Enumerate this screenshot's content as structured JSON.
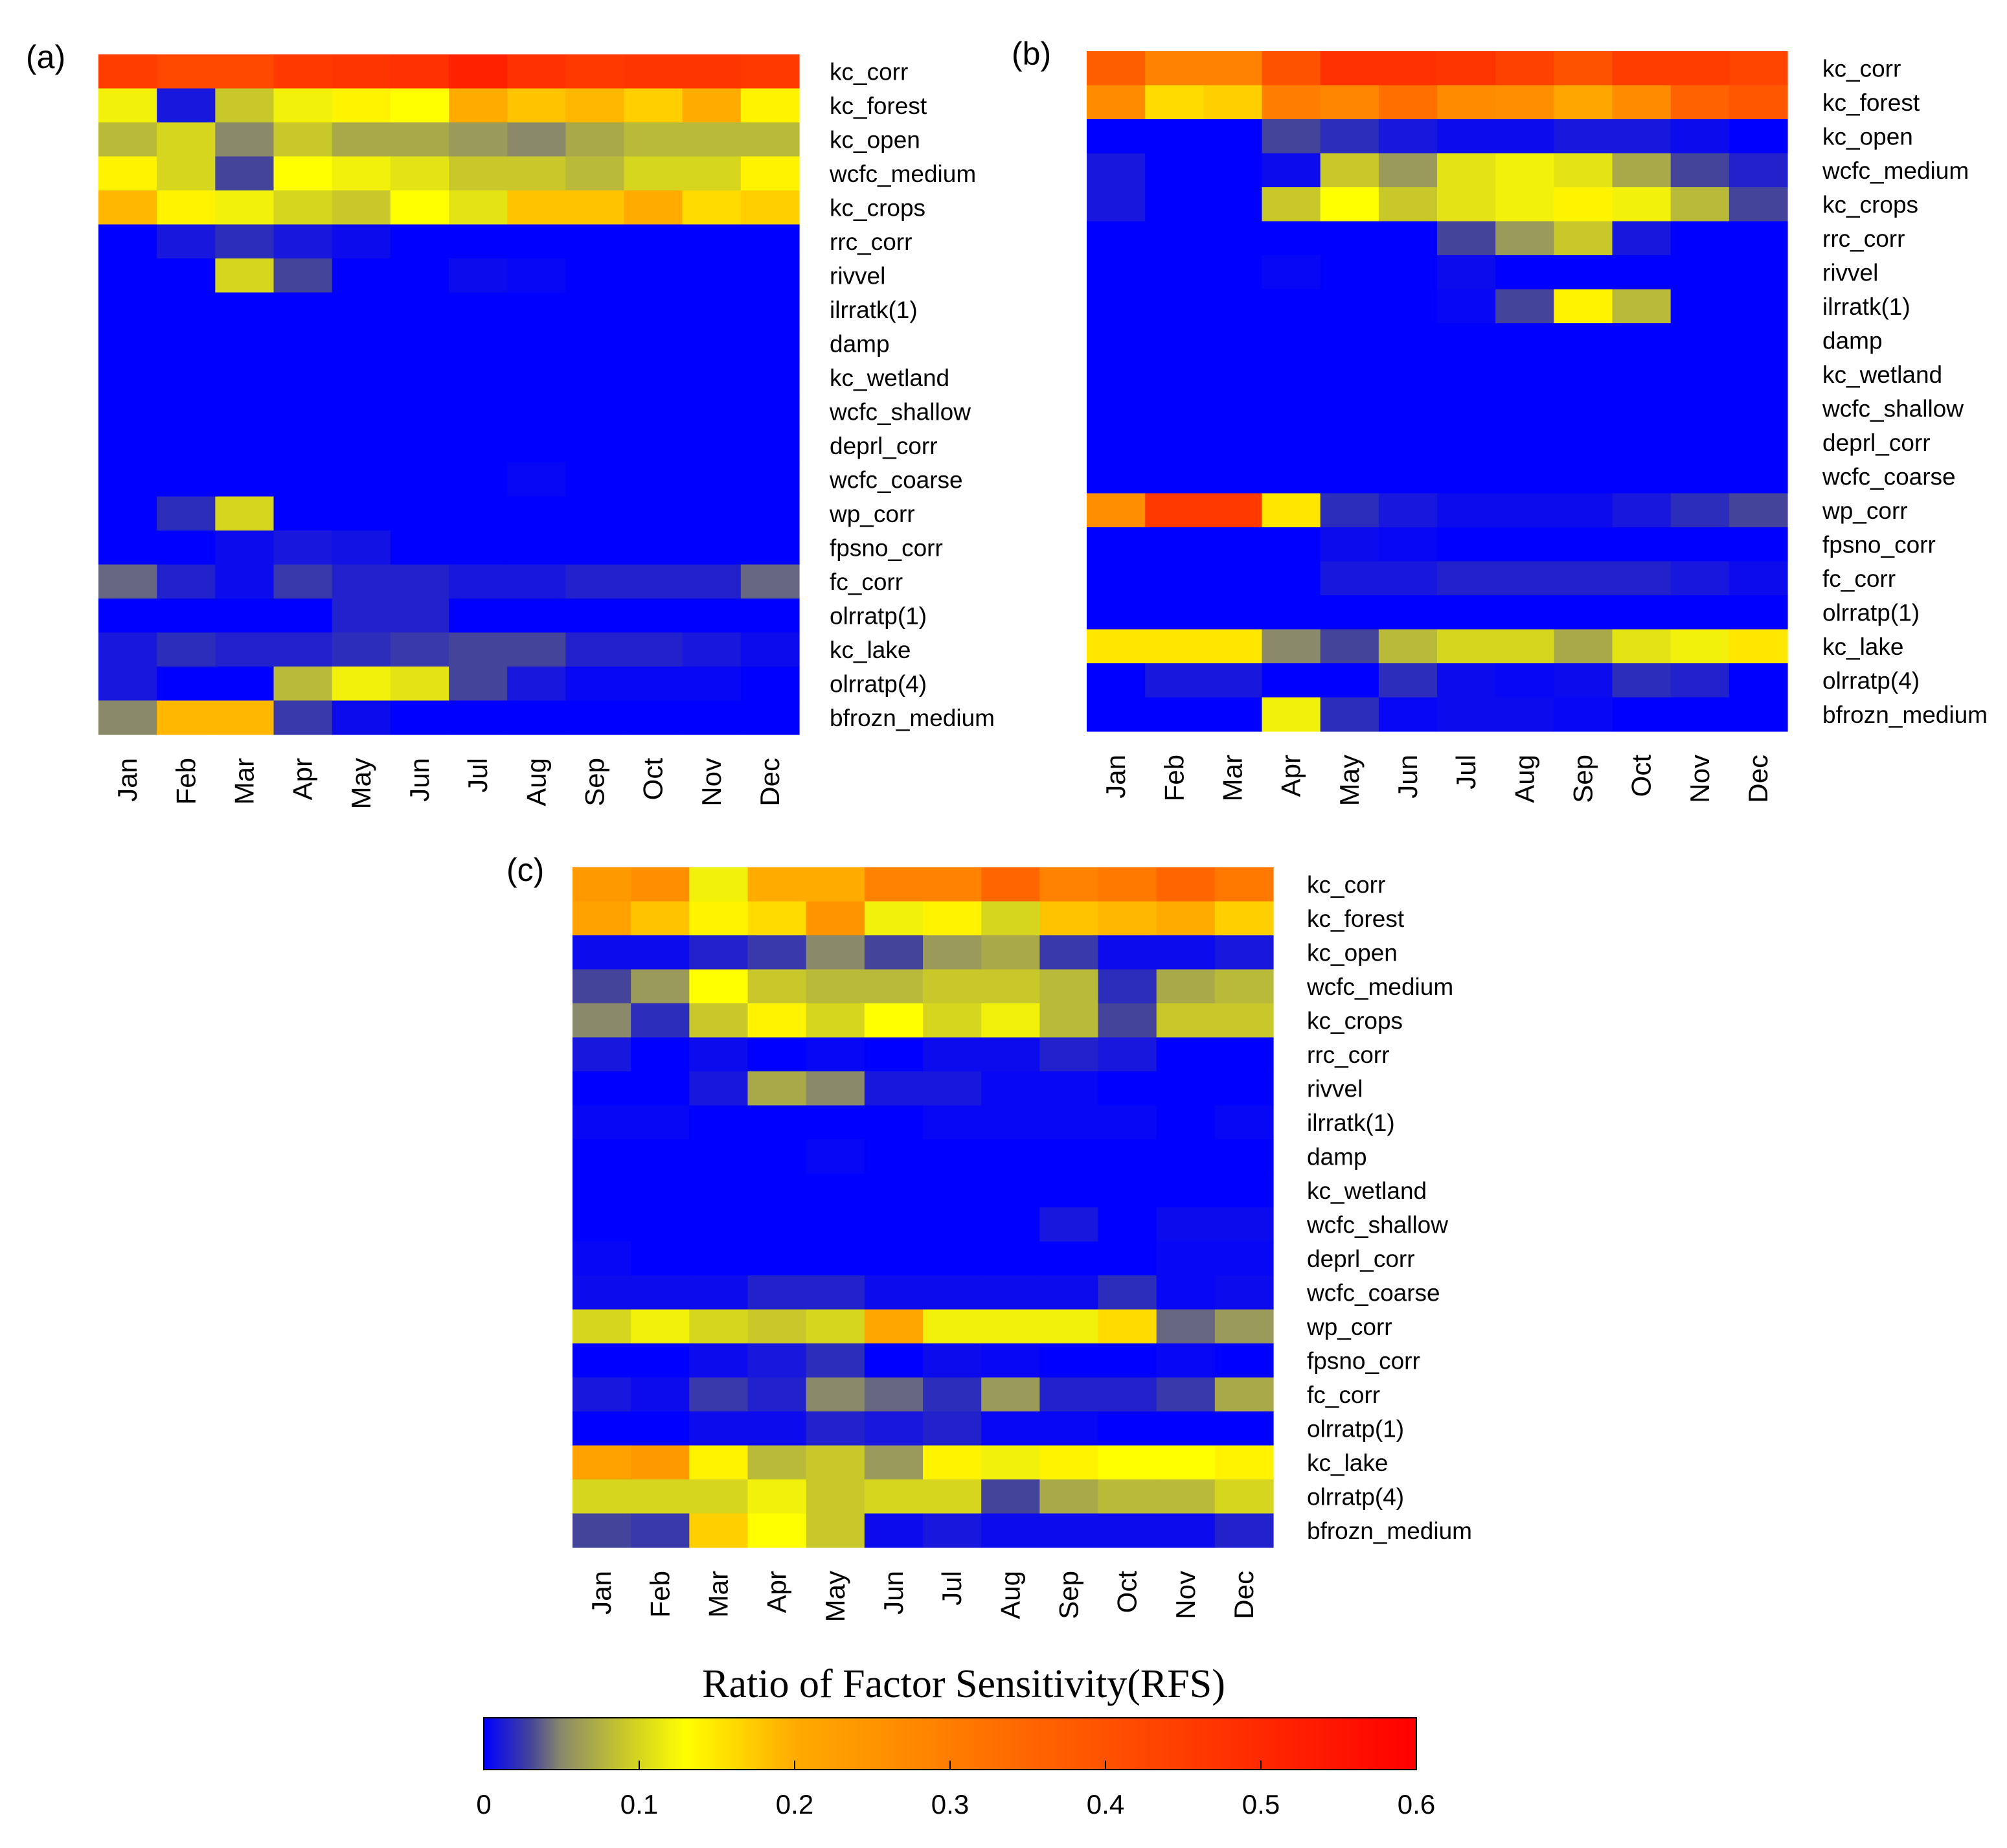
{
  "chart_data": [
    {
      "type": "heatmap",
      "panel_label": "(a)",
      "x_categories": [
        "Jan",
        "Feb",
        "Mar",
        "Apr",
        "May",
        "Jun",
        "Jul",
        "Aug",
        "Sep",
        "Oct",
        "Nov",
        "Dec"
      ],
      "y_categories": [
        "kc_corr",
        "kc_forest",
        "kc_open",
        "wcfc_medium",
        "kc_crops",
        "rrc_corr",
        "rivvel",
        "ilrratk(1)",
        "damp",
        "kc_wetland",
        "wcfc_shallow",
        "deprl_corr",
        "wcfc_coarse",
        "wp_corr",
        "fpsno_corr",
        "fc_corr",
        "olrratp(1)",
        "kc_lake",
        "olrratp(4)",
        "bfrozn_medium"
      ],
      "values": [
        [
          0.45,
          0.42,
          0.42,
          0.46,
          0.47,
          0.48,
          0.52,
          0.48,
          0.46,
          0.47,
          0.47,
          0.46
        ],
        [
          0.12,
          0.01,
          0.09,
          0.12,
          0.14,
          0.13,
          0.2,
          0.18,
          0.19,
          0.17,
          0.2,
          0.14
        ],
        [
          0.08,
          0.1,
          0.05,
          0.09,
          0.07,
          0.07,
          0.06,
          0.05,
          0.07,
          0.08,
          0.08,
          0.08
        ],
        [
          0.14,
          0.1,
          0.03,
          0.13,
          0.12,
          0.11,
          0.09,
          0.09,
          0.08,
          0.1,
          0.1,
          0.14
        ],
        [
          0.19,
          0.14,
          0.12,
          0.1,
          0.09,
          0.13,
          0.11,
          0.18,
          0.18,
          0.2,
          0.16,
          0.17
        ],
        [
          0.0,
          0.01,
          0.02,
          0.01,
          0.005,
          0.0,
          0.0,
          0.0,
          0.0,
          0.0,
          0.0,
          0.0
        ],
        [
          0.0,
          0.0,
          0.1,
          0.03,
          0.0,
          0.0,
          0.005,
          0.003,
          0.0,
          0.0,
          0.0,
          0.0
        ],
        [
          0.0,
          0.0,
          0.0,
          0.0,
          0.0,
          0.0,
          0.0,
          0.0,
          0.0,
          0.0,
          0.0,
          0.0
        ],
        [
          0.0,
          0.0,
          0.0,
          0.0,
          0.0,
          0.0,
          0.0,
          0.0,
          0.0,
          0.0,
          0.0,
          0.0
        ],
        [
          0.0,
          0.0,
          0.0,
          0.0,
          0.0,
          0.0,
          0.0,
          0.0,
          0.0,
          0.0,
          0.0,
          0.0
        ],
        [
          0.0,
          0.0,
          0.0,
          0.0,
          0.0,
          0.0,
          0.0,
          0.0,
          0.0,
          0.0,
          0.0,
          0.0
        ],
        [
          0.0,
          0.0,
          0.0,
          0.0,
          0.0,
          0.0,
          0.0,
          0.0,
          0.0,
          0.0,
          0.0,
          0.0
        ],
        [
          0.0,
          0.0,
          0.0,
          0.0,
          0.0,
          0.0,
          0.0,
          0.003,
          0.0,
          0.0,
          0.0,
          0.0
        ],
        [
          0.0,
          0.02,
          0.1,
          0.0,
          0.0,
          0.0,
          0.0,
          0.0,
          0.0,
          0.0,
          0.0,
          0.0
        ],
        [
          0.0,
          0.0,
          0.005,
          0.01,
          0.008,
          0.0,
          0.0,
          0.0,
          0.0,
          0.0,
          0.0,
          0.0
        ],
        [
          0.04,
          0.015,
          0.005,
          0.025,
          0.015,
          0.015,
          0.01,
          0.01,
          0.015,
          0.015,
          0.015,
          0.04
        ],
        [
          0.0,
          0.0,
          0.0,
          0.0,
          0.015,
          0.015,
          0.0,
          0.0,
          0.0,
          0.0,
          0.0,
          0.0
        ],
        [
          0.01,
          0.02,
          0.015,
          0.015,
          0.02,
          0.025,
          0.03,
          0.03,
          0.015,
          0.015,
          0.01,
          0.005
        ],
        [
          0.01,
          0.0,
          0.0,
          0.08,
          0.12,
          0.11,
          0.03,
          0.01,
          0.003,
          0.003,
          0.003,
          0.0
        ],
        [
          0.05,
          0.19,
          0.19,
          0.025,
          0.005,
          0.0,
          0.0,
          0.0,
          0.0,
          0.0,
          0.0,
          0.0
        ]
      ]
    },
    {
      "type": "heatmap",
      "panel_label": "(b)",
      "x_categories": [
        "Jan",
        "Feb",
        "Mar",
        "Apr",
        "May",
        "Jun",
        "Jul",
        "Aug",
        "Sep",
        "Oct",
        "Nov",
        "Dec"
      ],
      "y_categories": [
        "kc_corr",
        "kc_forest",
        "kc_open",
        "wcfc_medium",
        "kc_crops",
        "rrc_corr",
        "rivvel",
        "ilrratk(1)",
        "damp",
        "kc_wetland",
        "wcfc_shallow",
        "deprl_corr",
        "wcfc_coarse",
        "wp_corr",
        "fpsno_corr",
        "fc_corr",
        "olrratp(1)",
        "kc_lake",
        "olrratp(4)",
        "bfrozn_medium"
      ],
      "values": [
        [
          0.37,
          0.29,
          0.29,
          0.4,
          0.48,
          0.48,
          0.47,
          0.44,
          0.4,
          0.45,
          0.45,
          0.43
        ],
        [
          0.27,
          0.16,
          0.17,
          0.3,
          0.28,
          0.33,
          0.27,
          0.26,
          0.21,
          0.27,
          0.36,
          0.39
        ],
        [
          0.0,
          0.0,
          0.0,
          0.03,
          0.02,
          0.01,
          0.005,
          0.005,
          0.01,
          0.01,
          0.005,
          0.0
        ],
        [
          0.01,
          0.0,
          0.0,
          0.005,
          0.09,
          0.06,
          0.11,
          0.12,
          0.11,
          0.07,
          0.03,
          0.015
        ],
        [
          0.01,
          0.0,
          0.0,
          0.09,
          0.13,
          0.09,
          0.11,
          0.12,
          0.14,
          0.12,
          0.08,
          0.03
        ],
        [
          0.0,
          0.0,
          0.0,
          0.0,
          0.0,
          0.0,
          0.03,
          0.06,
          0.09,
          0.01,
          0.0,
          0.0
        ],
        [
          0.0,
          0.0,
          0.0,
          0.003,
          0.0,
          0.0,
          0.005,
          0.0,
          0.0,
          0.0,
          0.0,
          0.0
        ],
        [
          0.0,
          0.0,
          0.0,
          0.0,
          0.0,
          0.0,
          0.003,
          0.03,
          0.14,
          0.08,
          0.0,
          0.0
        ],
        [
          0.0,
          0.0,
          0.0,
          0.0,
          0.0,
          0.0,
          0.0,
          0.0,
          0.0,
          0.0,
          0.0,
          0.0
        ],
        [
          0.0,
          0.0,
          0.0,
          0.0,
          0.0,
          0.0,
          0.0,
          0.0,
          0.0,
          0.0,
          0.0,
          0.0
        ],
        [
          0.0,
          0.0,
          0.0,
          0.0,
          0.0,
          0.0,
          0.0,
          0.0,
          0.0,
          0.0,
          0.0,
          0.0
        ],
        [
          0.0,
          0.0,
          0.0,
          0.0,
          0.0,
          0.0,
          0.0,
          0.0,
          0.0,
          0.0,
          0.0,
          0.0
        ],
        [
          0.0,
          0.0,
          0.0,
          0.0,
          0.0,
          0.0,
          0.0,
          0.0,
          0.0,
          0.0,
          0.0,
          0.0
        ],
        [
          0.26,
          0.46,
          0.46,
          0.15,
          0.02,
          0.01,
          0.005,
          0.005,
          0.005,
          0.01,
          0.02,
          0.03
        ],
        [
          0.0,
          0.0,
          0.0,
          0.0,
          0.005,
          0.003,
          0.0,
          0.0,
          0.0,
          0.0,
          0.0,
          0.0
        ],
        [
          0.0,
          0.0,
          0.0,
          0.0,
          0.01,
          0.01,
          0.015,
          0.015,
          0.015,
          0.015,
          0.01,
          0.005
        ],
        [
          0.0,
          0.0,
          0.0,
          0.0,
          0.0,
          0.0,
          0.0,
          0.0,
          0.0,
          0.0,
          0.0,
          0.0
        ],
        [
          0.15,
          0.15,
          0.15,
          0.05,
          0.03,
          0.08,
          0.1,
          0.1,
          0.07,
          0.11,
          0.12,
          0.15
        ],
        [
          0.0,
          0.01,
          0.01,
          0.0,
          0.0,
          0.02,
          0.005,
          0.003,
          0.005,
          0.02,
          0.015,
          0.0
        ],
        [
          0.0,
          0.0,
          0.0,
          0.12,
          0.02,
          0.003,
          0.005,
          0.005,
          0.003,
          0.0,
          0.0,
          0.0
        ]
      ]
    },
    {
      "type": "heatmap",
      "panel_label": "(c)",
      "x_categories": [
        "Jan",
        "Feb",
        "Mar",
        "Apr",
        "May",
        "Jun",
        "Jul",
        "Aug",
        "Sep",
        "Oct",
        "Nov",
        "Dec"
      ],
      "y_categories": [
        "kc_corr",
        "kc_forest",
        "kc_open",
        "wcfc_medium",
        "kc_crops",
        "rrc_corr",
        "rivvel",
        "ilrratk(1)",
        "damp",
        "kc_wetland",
        "wcfc_shallow",
        "deprl_corr",
        "wcfc_coarse",
        "wp_corr",
        "fpsno_corr",
        "fc_corr",
        "olrratp(1)",
        "kc_lake",
        "olrratp(4)",
        "bfrozn_medium"
      ],
      "values": [
        [
          0.24,
          0.26,
          0.12,
          0.2,
          0.2,
          0.29,
          0.29,
          0.35,
          0.29,
          0.31,
          0.35,
          0.31
        ],
        [
          0.22,
          0.18,
          0.14,
          0.16,
          0.25,
          0.12,
          0.14,
          0.1,
          0.18,
          0.19,
          0.2,
          0.17
        ],
        [
          0.005,
          0.005,
          0.015,
          0.025,
          0.05,
          0.03,
          0.06,
          0.07,
          0.025,
          0.005,
          0.005,
          0.01
        ],
        [
          0.03,
          0.06,
          0.13,
          0.09,
          0.08,
          0.08,
          0.09,
          0.09,
          0.08,
          0.02,
          0.07,
          0.08
        ],
        [
          0.05,
          0.02,
          0.09,
          0.14,
          0.1,
          0.13,
          0.1,
          0.12,
          0.08,
          0.03,
          0.09,
          0.09
        ],
        [
          0.01,
          0.0,
          0.005,
          0.0,
          0.003,
          0.0,
          0.005,
          0.005,
          0.015,
          0.01,
          0.0,
          0.0
        ],
        [
          0.0,
          0.0,
          0.01,
          0.07,
          0.05,
          0.01,
          0.01,
          0.003,
          0.003,
          0.0,
          0.0,
          0.0
        ],
        [
          0.003,
          0.003,
          0.0,
          0.0,
          0.0,
          0.0,
          0.003,
          0.003,
          0.003,
          0.003,
          0.0,
          0.003
        ],
        [
          0.0,
          0.0,
          0.0,
          0.0,
          0.003,
          0.0,
          0.0,
          0.0,
          0.0,
          0.0,
          0.0,
          0.0
        ],
        [
          0.0,
          0.0,
          0.0,
          0.0,
          0.0,
          0.0,
          0.0,
          0.0,
          0.0,
          0.0,
          0.0,
          0.0
        ],
        [
          0.0,
          0.0,
          0.0,
          0.0,
          0.0,
          0.0,
          0.0,
          0.0,
          0.01,
          0.0,
          0.005,
          0.005
        ],
        [
          0.003,
          0.0,
          0.0,
          0.0,
          0.0,
          0.0,
          0.0,
          0.0,
          0.0,
          0.0,
          0.003,
          0.003
        ],
        [
          0.005,
          0.005,
          0.005,
          0.015,
          0.015,
          0.005,
          0.005,
          0.005,
          0.005,
          0.02,
          0.003,
          0.005
        ],
        [
          0.1,
          0.12,
          0.1,
          0.09,
          0.1,
          0.21,
          0.12,
          0.12,
          0.12,
          0.16,
          0.04,
          0.06
        ],
        [
          0.0,
          0.0,
          0.005,
          0.01,
          0.02,
          0.0,
          0.005,
          0.003,
          0.0,
          0.0,
          0.003,
          0.0
        ],
        [
          0.01,
          0.005,
          0.025,
          0.015,
          0.05,
          0.04,
          0.02,
          0.06,
          0.015,
          0.015,
          0.025,
          0.07
        ],
        [
          0.0,
          0.0,
          0.005,
          0.005,
          0.015,
          0.01,
          0.015,
          0.003,
          0.003,
          0.0,
          0.0,
          0.0
        ],
        [
          0.22,
          0.24,
          0.14,
          0.08,
          0.09,
          0.06,
          0.14,
          0.12,
          0.14,
          0.13,
          0.13,
          0.14
        ],
        [
          0.1,
          0.1,
          0.1,
          0.12,
          0.09,
          0.1,
          0.1,
          0.03,
          0.07,
          0.08,
          0.08,
          0.1
        ],
        [
          0.03,
          0.025,
          0.17,
          0.13,
          0.09,
          0.005,
          0.01,
          0.005,
          0.005,
          0.005,
          0.005,
          0.015
        ]
      ]
    }
  ],
  "colorbar": {
    "title": "Ratio of Factor Sensitivity(RFS)",
    "min": 0,
    "max": 0.6,
    "tick_values": [
      0,
      0.1,
      0.2,
      0.3,
      0.4,
      0.5,
      0.6
    ],
    "tick_labels": [
      "0",
      "0.1",
      "0.2",
      "0.3",
      "0.4",
      "0.5",
      "0.6"
    ],
    "color_stops": [
      {
        "value": 0.0,
        "color": "#0000ff"
      },
      {
        "value": 0.03,
        "color": "#44449a"
      },
      {
        "value": 0.05,
        "color": "#8a8a6a"
      },
      {
        "value": 0.09,
        "color": "#c8c82a"
      },
      {
        "value": 0.13,
        "color": "#ffff00"
      },
      {
        "value": 0.2,
        "color": "#ffab00"
      },
      {
        "value": 0.35,
        "color": "#ff6600"
      },
      {
        "value": 0.6,
        "color": "#ff0000"
      }
    ]
  }
}
